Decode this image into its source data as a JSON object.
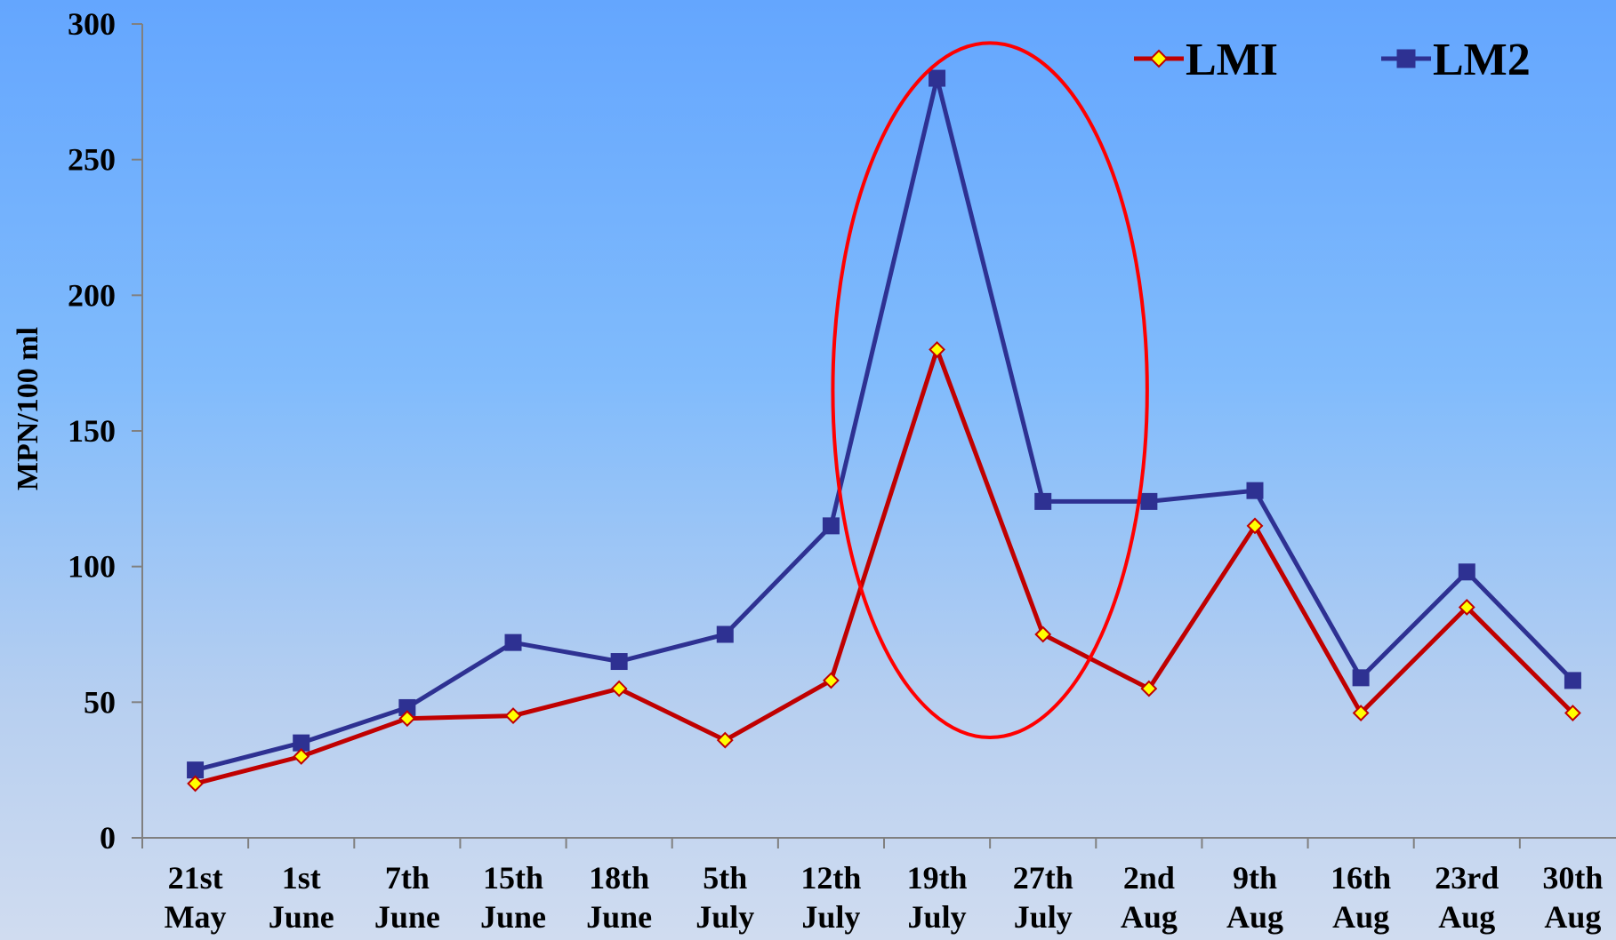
{
  "chart_data": {
    "type": "line",
    "title": "",
    "xlabel": "",
    "ylabel": "MPN/100 ml",
    "ylim": [
      0,
      300
    ],
    "yticks": [
      0,
      50,
      100,
      150,
      200,
      250,
      300
    ],
    "categories": [
      [
        "21st",
        "May"
      ],
      [
        "1st",
        "June"
      ],
      [
        "7th",
        "June"
      ],
      [
        "15th",
        "June"
      ],
      [
        "18th",
        "June"
      ],
      [
        "5th",
        "July"
      ],
      [
        "12th",
        "July"
      ],
      [
        "19th",
        "July"
      ],
      [
        "27th",
        "July"
      ],
      [
        "2nd",
        "Aug"
      ],
      [
        "9th",
        "Aug"
      ],
      [
        "16th",
        "Aug"
      ],
      [
        "23rd",
        "Aug"
      ],
      [
        "30th",
        "Aug"
      ]
    ],
    "series": [
      {
        "name": "LMI",
        "color": "#c00000",
        "marker": "diamond",
        "marker_fill": "#ffff00",
        "values": [
          20,
          30,
          44,
          45,
          55,
          36,
          58,
          180,
          75,
          55,
          115,
          46,
          85,
          46
        ]
      },
      {
        "name": "LM2",
        "color": "#2e3192",
        "marker": "square",
        "marker_fill": "#2e3192",
        "values": [
          25,
          35,
          48,
          72,
          65,
          75,
          115,
          280,
          124,
          124,
          128,
          59,
          98,
          58
        ]
      }
    ],
    "legend_position": "top-right",
    "grid": false,
    "annotation": {
      "shape": "ellipse",
      "color": "#ff0000",
      "highlights": [
        "12th July",
        "19th July",
        "27th July",
        "2nd Aug"
      ]
    }
  }
}
